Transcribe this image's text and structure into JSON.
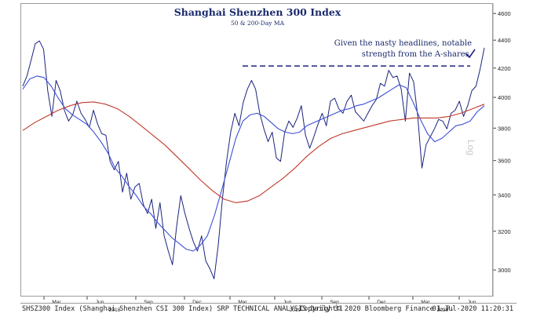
{
  "chart_data": {
    "type": "line",
    "title": "Shanghai Shenzhen 300 Index",
    "subtitle": "50 & 200-Day MA",
    "annotation": [
      "Given the nasty headlines, notable",
      "strength from the A-shares."
    ],
    "y_axis": {
      "position": "right",
      "scale": "log",
      "scale_label": "Log",
      "ticks": [
        3000,
        3200,
        3400,
        3600,
        3800,
        4000,
        4200,
        4400,
        4600
      ],
      "ylim": [
        2870,
        4680
      ]
    },
    "x_axis": {
      "month_ticks": [
        "Mar",
        "Jun",
        "Sep",
        "Dec",
        "Mar",
        "Jun",
        "Sep",
        "Dec",
        "Mar",
        "Jun"
      ],
      "year_labels": [
        "2018",
        "2019",
        "2020"
      ]
    },
    "reference_line": {
      "value": 4220,
      "style": "dashed"
    },
    "series": [
      {
        "name": "SHSZ300 Index",
        "color": "#1a237e",
        "values": [
          4080,
          4150,
          4260,
          4380,
          4400,
          4340,
          4050,
          3880,
          4120,
          4050,
          3920,
          3850,
          3890,
          3980,
          3900,
          3860,
          3810,
          3920,
          3830,
          3770,
          3760,
          3600,
          3550,
          3600,
          3420,
          3530,
          3380,
          3450,
          3470,
          3350,
          3300,
          3380,
          3220,
          3360,
          3180,
          3100,
          3030,
          3230,
          3400,
          3300,
          3220,
          3150,
          3100,
          3180,
          3050,
          3010,
          2960,
          3130,
          3380,
          3600,
          3780,
          3900,
          3820,
          3970,
          4060,
          4120,
          4060,
          3900,
          3800,
          3720,
          3780,
          3620,
          3600,
          3780,
          3850,
          3810,
          3870,
          3950,
          3760,
          3680,
          3750,
          3830,
          3900,
          3820,
          3980,
          4000,
          3930,
          3900,
          3980,
          4020,
          3910,
          3880,
          3850,
          3900,
          3950,
          3990,
          4100,
          4080,
          4190,
          4140,
          4150,
          4060,
          3850,
          4170,
          4110,
          3880,
          3560,
          3700,
          3750,
          3800,
          3860,
          3850,
          3800,
          3900,
          3920,
          3980,
          3880,
          3950,
          4050,
          4080,
          4200,
          4350
        ]
      },
      {
        "name": "50-Day MA",
        "color": "#3b4fd8",
        "values": [
          4060,
          4130,
          4150,
          4140,
          4080,
          4000,
          3930,
          3890,
          3860,
          3830,
          3780,
          3720,
          3650,
          3560,
          3510,
          3450,
          3400,
          3340,
          3300,
          3250,
          3210,
          3170,
          3140,
          3110,
          3100,
          3130,
          3180,
          3290,
          3430,
          3580,
          3740,
          3850,
          3890,
          3900,
          3880,
          3840,
          3800,
          3780,
          3770,
          3780,
          3820,
          3840,
          3860,
          3880,
          3900,
          3920,
          3930,
          3950,
          3960,
          3980,
          4000,
          4030,
          4060,
          4090,
          4070,
          3970,
          3860,
          3770,
          3720,
          3740,
          3780,
          3820,
          3830,
          3850,
          3910,
          3950
        ]
      },
      {
        "name": "200-Day MA",
        "color": "#c0392b",
        "values": [
          3790,
          3840,
          3880,
          3920,
          3950,
          3970,
          3975,
          3960,
          3930,
          3880,
          3820,
          3760,
          3700,
          3630,
          3560,
          3490,
          3430,
          3380,
          3360,
          3370,
          3400,
          3450,
          3500,
          3560,
          3630,
          3690,
          3740,
          3770,
          3790,
          3810,
          3830,
          3850,
          3860,
          3870,
          3870,
          3870,
          3880,
          3900,
          3930,
          3960
        ]
      }
    ]
  },
  "footer": {
    "left": "SHSZ300 Index (Shanghai Shenzhen CSI 300 Index) SRP TECHNICAL ANALYSIS  Daily 31",
    "center": "Copyright© 2020 Bloomberg Finance L.P.",
    "right": "01-Jul-2020  11:20:31"
  }
}
